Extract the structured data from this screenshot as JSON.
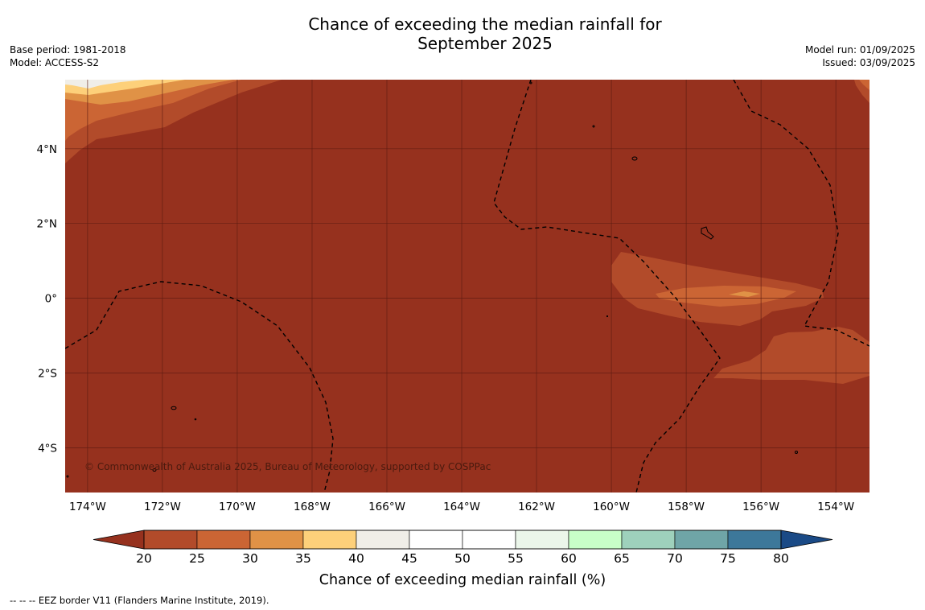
{
  "header": {
    "title_line1": "Chance of exceeding the median rainfall for",
    "title_line2": "September 2025",
    "base_period": "Base period: 1981-2018",
    "model": "Model: ACCESS-S2",
    "model_run": "Model run: 01/09/2025",
    "issued": "Issued: 03/09/2025"
  },
  "map": {
    "extent": {
      "lon_min": -174.6,
      "lon_max": -153.1,
      "lat_min": -5.2,
      "lat_max": 5.85
    },
    "lon_ticks": [
      {
        "value": -174,
        "label": "174°W"
      },
      {
        "value": -172,
        "label": "172°W"
      },
      {
        "value": -170,
        "label": "170°W"
      },
      {
        "value": -168,
        "label": "168°W"
      },
      {
        "value": -166,
        "label": "166°W"
      },
      {
        "value": -164,
        "label": "164°W"
      },
      {
        "value": -162,
        "label": "162°W"
      },
      {
        "value": -160,
        "label": "160°W"
      },
      {
        "value": -158,
        "label": "158°W"
      },
      {
        "value": -156,
        "label": "156°W"
      },
      {
        "value": -154,
        "label": "154°W"
      }
    ],
    "lat_ticks": [
      {
        "value": 4,
        "label": "4°N"
      },
      {
        "value": 2,
        "label": "2°N"
      },
      {
        "value": 0,
        "label": "0°"
      },
      {
        "value": -2,
        "label": "2°S"
      },
      {
        "value": -4,
        "label": "4°S"
      }
    ],
    "background_color": "#96311e",
    "copyright": "© Commonwealth of Australia 2025, Bureau of Meteorology, supported by COSPPac"
  },
  "colorbar": {
    "label": "Chance of exceeding median rainfall (%)",
    "ticks": [
      "20",
      "25",
      "30",
      "35",
      "40",
      "45",
      "50",
      "55",
      "60",
      "65",
      "70",
      "75",
      "80"
    ],
    "under_color": "#96311e",
    "over_color": "#1a4a86",
    "colors": [
      "#b24b2a",
      "#cb6534",
      "#e09246",
      "#fdd07a",
      "#f0eee8",
      "#ffffff",
      "#ffffff",
      "#ebf6ea",
      "#c8ffc8",
      "#9ed1bc",
      "#6fa5a7",
      "#3d789a"
    ]
  },
  "footer": {
    "legend_text": "--  --  -- EEZ border V11 (Flanders Marine Institute, 2019)."
  }
}
